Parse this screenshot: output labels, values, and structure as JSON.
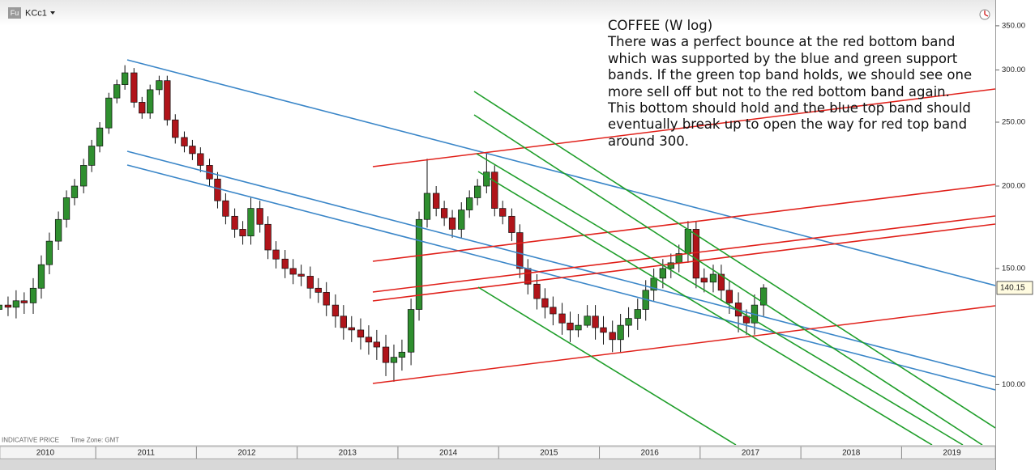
{
  "chart_data": {
    "type": "candlestick",
    "badge": "Fu",
    "symbol": "KCc1",
    "annotation_lines": [
      "COFFEE (W log)",
      "There was a perfect bounce at the red bottom band",
      "which was supported by the blue and green support",
      "bands. If the green top band holds, we should see one",
      "more sell off but not to the red bottom band again.",
      "This bottom should hold and the blue top band should",
      "eventually break up to open the way for red top band",
      "around 300."
    ],
    "footer_notes": [
      "INDICATIVE PRICE",
      "Time Zone: GMT"
    ],
    "log_scale": true,
    "up_color": "#2f8f2f",
    "down_color": "#b0141a",
    "xlim": [
      2010.05,
      2019.93
    ],
    "xticks": [
      2010,
      2011,
      2012,
      2013,
      2014,
      2015,
      2016,
      2017,
      2018,
      2019
    ],
    "ylim": [
      81,
      383
    ],
    "yticks": [
      {
        "value": 100,
        "label": "100.00"
      },
      {
        "value": 150,
        "label": "150.00"
      },
      {
        "value": 200,
        "label": "200.00"
      },
      {
        "value": 250,
        "label": "250.00"
      },
      {
        "value": 300,
        "label": "300.00"
      },
      {
        "value": 350,
        "label": "350.00"
      }
    ],
    "x": [
      2010.04,
      2010.13,
      2010.21,
      2010.29,
      2010.38,
      2010.46,
      2010.54,
      2010.63,
      2010.71,
      2010.79,
      2010.88,
      2010.96,
      2011.04,
      2011.13,
      2011.21,
      2011.29,
      2011.38,
      2011.46,
      2011.54,
      2011.63,
      2011.71,
      2011.79,
      2011.88,
      2011.96,
      2012.04,
      2012.13,
      2012.21,
      2012.29,
      2012.38,
      2012.46,
      2012.54,
      2012.63,
      2012.71,
      2012.79,
      2012.88,
      2012.96,
      2013.04,
      2013.13,
      2013.21,
      2013.29,
      2013.38,
      2013.46,
      2013.54,
      2013.63,
      2013.71,
      2013.79,
      2013.88,
      2013.96,
      2014.04,
      2014.13,
      2014.21,
      2014.29,
      2014.38,
      2014.46,
      2014.54,
      2014.63,
      2014.71,
      2014.79,
      2014.88,
      2014.96,
      2015.04,
      2015.13,
      2015.21,
      2015.29,
      2015.38,
      2015.46,
      2015.54,
      2015.63,
      2015.71,
      2015.79,
      2015.88,
      2015.96,
      2016.04,
      2016.13,
      2016.21,
      2016.29,
      2016.38,
      2016.46,
      2016.54,
      2016.63,
      2016.71,
      2016.79,
      2016.88,
      2016.96,
      2017.04,
      2017.13,
      2017.21,
      2017.29,
      2017.38,
      2017.46,
      2017.54,
      2017.63
    ],
    "open": [
      130,
      132,
      131,
      134,
      133,
      140,
      152,
      165,
      178,
      192,
      200,
      215,
      230,
      245,
      272,
      285,
      297,
      268,
      258,
      280,
      289,
      252,
      237,
      230,
      224,
      215,
      205,
      190,
      180,
      172,
      168,
      185,
      175,
      160,
      155,
      150,
      147,
      146,
      140,
      138,
      132,
      127,
      122,
      121,
      118,
      116,
      114,
      108,
      110,
      112,
      130,
      178,
      195,
      185,
      179,
      172,
      184,
      192,
      200,
      210,
      185,
      180,
      170,
      150,
      142,
      135,
      131,
      128,
      124,
      121,
      123,
      127,
      122,
      120,
      117,
      123,
      126,
      130,
      139,
      145,
      150,
      153,
      158,
      172,
      145,
      143,
      147,
      139,
      133,
      127,
      124,
      132
    ],
    "high": [
      137,
      136,
      139,
      138,
      145,
      157,
      170,
      183,
      197,
      205,
      220,
      235,
      250,
      277,
      290,
      305,
      302,
      273,
      285,
      294,
      294,
      257,
      242,
      235,
      229,
      220,
      210,
      195,
      185,
      177,
      192,
      190,
      180,
      165,
      160,
      155,
      152,
      151,
      145,
      143,
      137,
      132,
      127,
      126,
      123,
      121,
      119,
      115,
      117,
      135,
      183,
      220,
      200,
      190,
      184,
      189,
      197,
      205,
      225,
      215,
      190,
      185,
      175,
      155,
      147,
      140,
      136,
      133,
      129,
      128,
      132,
      132,
      127,
      125,
      128,
      131,
      135,
      144,
      150,
      155,
      158,
      163,
      177,
      177,
      150,
      152,
      152,
      144,
      138,
      130,
      137,
      142
    ],
    "low": [
      126,
      127,
      126,
      128,
      128,
      135,
      147,
      160,
      173,
      187,
      195,
      210,
      225,
      240,
      267,
      280,
      263,
      253,
      253,
      275,
      247,
      232,
      225,
      219,
      210,
      200,
      185,
      175,
      167,
      163,
      163,
      170,
      155,
      150,
      145,
      142,
      141,
      135,
      133,
      127,
      122,
      117,
      116,
      113,
      111,
      109,
      103,
      101,
      105,
      107,
      125,
      173,
      180,
      174,
      167,
      167,
      179,
      187,
      195,
      180,
      175,
      165,
      145,
      137,
      130,
      126,
      123,
      119,
      116,
      118,
      122,
      117,
      115,
      112,
      112,
      118,
      121,
      125,
      134,
      140,
      145,
      148,
      153,
      140,
      138,
      138,
      134,
      128,
      120,
      119,
      119,
      127
    ],
    "close": [
      132,
      131,
      134,
      133,
      140,
      152,
      165,
      178,
      192,
      200,
      215,
      230,
      245,
      272,
      285,
      297,
      268,
      258,
      280,
      289,
      252,
      237,
      230,
      224,
      215,
      205,
      190,
      180,
      172,
      168,
      185,
      175,
      160,
      155,
      150,
      147,
      146,
      140,
      138,
      132,
      127,
      122,
      121,
      118,
      116,
      114,
      108,
      110,
      112,
      130,
      178,
      195,
      185,
      179,
      172,
      184,
      192,
      200,
      210,
      185,
      180,
      170,
      150,
      142,
      135,
      131,
      128,
      124,
      121,
      123,
      127,
      122,
      120,
      117,
      123,
      126,
      130,
      139,
      145,
      150,
      153,
      158,
      172,
      145,
      143,
      147,
      139,
      133,
      127,
      124,
      132,
      140.15
    ]
  }
}
